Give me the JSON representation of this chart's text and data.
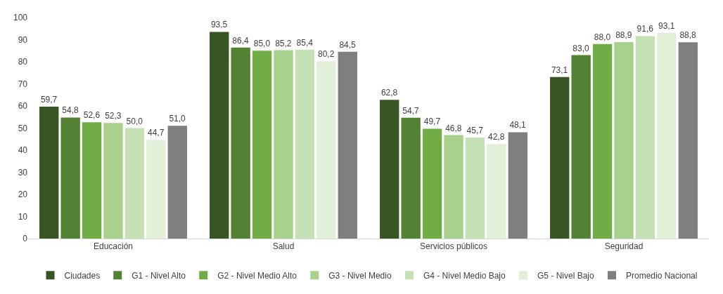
{
  "chart_data": {
    "type": "bar",
    "categories": [
      "Educación",
      "Salud",
      "Servicios públicos",
      "Seguridad"
    ],
    "series": [
      {
        "name": "Ciudades",
        "color": "#375623",
        "values": [
          59.7,
          93.5,
          62.8,
          73.1
        ],
        "value_labels": [
          "59,7",
          "93,5",
          "62,8",
          "73,1"
        ]
      },
      {
        "name": "G1 - Nivel Alto",
        "color": "#548235",
        "values": [
          54.8,
          86.4,
          54.7,
          83.0
        ],
        "value_labels": [
          "54,8",
          "86,4",
          "54,7",
          "83,0"
        ]
      },
      {
        "name": "G2 - Nivel Medio Alto",
        "color": "#70ad47",
        "values": [
          52.6,
          85.0,
          49.7,
          88.0
        ],
        "value_labels": [
          "52,6",
          "85,0",
          "49,7",
          "88,0"
        ]
      },
      {
        "name": "G3 - Nivel Medio",
        "color": "#a9d18e",
        "values": [
          52.3,
          85.2,
          46.8,
          88.9
        ],
        "value_labels": [
          "52,3",
          "85,2",
          "46,8",
          "88,9"
        ]
      },
      {
        "name": "G4 - Nivel Medio Bajo",
        "color": "#c5e0b4",
        "values": [
          50.0,
          85.4,
          45.7,
          91.6
        ],
        "value_labels": [
          "50,0",
          "85,4",
          "45,7",
          "91,6"
        ]
      },
      {
        "name": "G5 - Nivel Bajo",
        "color": "#e2f0d9",
        "values": [
          44.7,
          80.2,
          42.8,
          93.1
        ],
        "value_labels": [
          "44,7",
          "80,2",
          "42,8",
          "93,1"
        ]
      },
      {
        "name": "Promedio Nacional",
        "color": "#7f7f7f",
        "values": [
          51.0,
          84.5,
          48.1,
          88.8
        ],
        "value_labels": [
          "51,0",
          "84,5",
          "48,1",
          "88,8"
        ]
      }
    ],
    "ylim": [
      0,
      100
    ],
    "yticks": [
      0,
      10,
      20,
      30,
      40,
      50,
      60,
      70,
      80,
      90,
      100
    ],
    "legend": "bottom"
  }
}
